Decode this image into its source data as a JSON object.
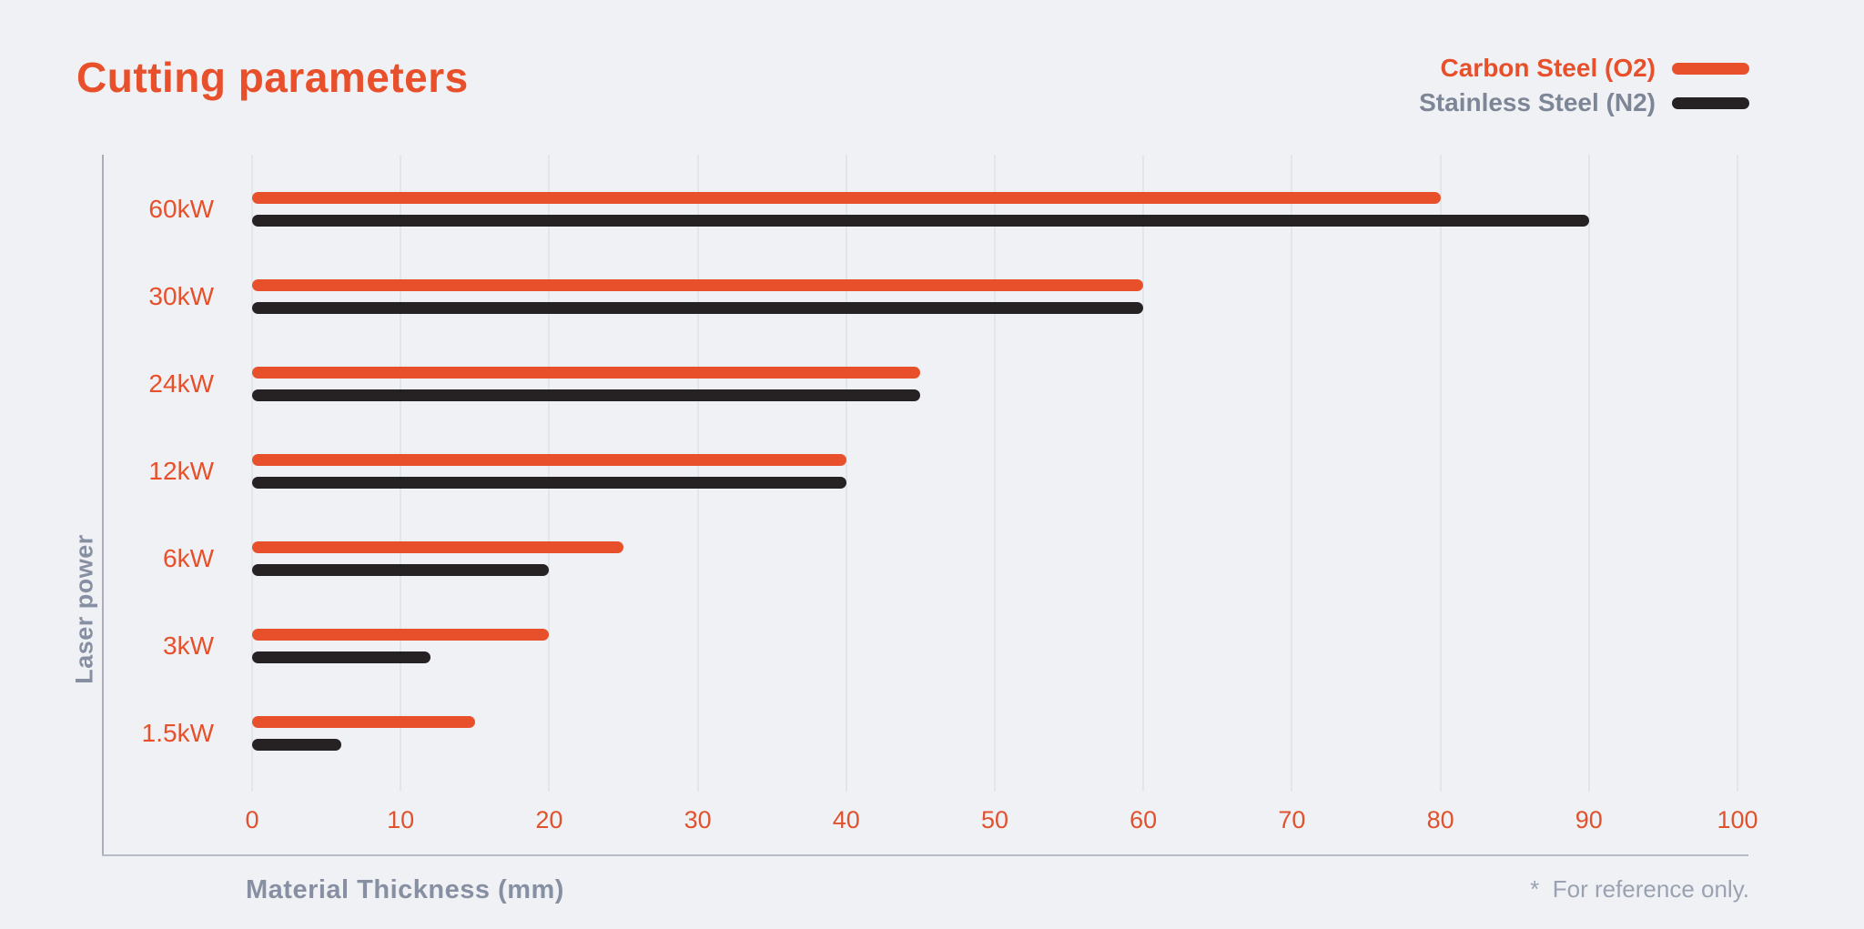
{
  "chart_data": {
    "type": "bar",
    "orientation": "horizontal",
    "title": "Cutting parameters",
    "categories": [
      "60kW",
      "30kW",
      "24kW",
      "12kW",
      "6kW",
      "3kW",
      "1.5kW"
    ],
    "series": [
      {
        "name": "Carbon Steel (O2)",
        "color": "#E8502B",
        "values": [
          80,
          60,
          45,
          40,
          25,
          20,
          15
        ]
      },
      {
        "name": "Stainless Steel (N2)",
        "color": "#262223",
        "values": [
          90,
          60,
          45,
          40,
          20,
          12,
          6
        ]
      }
    ],
    "xlabel": "Material Thickness (mm)",
    "ylabel": "Laser power",
    "xlim": [
      0,
      100
    ],
    "xticks": [
      0,
      10,
      20,
      30,
      40,
      50,
      60,
      70,
      80,
      90,
      100
    ],
    "grid": true,
    "legend_position": "top-right"
  },
  "footnote": "*  For reference only.",
  "colors": {
    "background": "#F0F1F5",
    "title": "#E8502B",
    "tick_label": "#E0512E",
    "category_label": "#E8502B",
    "gridline": "#E2E5EA",
    "axis_line": "#A9AEB9",
    "axis_text": "#8790A2",
    "footnote_text": "#9AA2B2",
    "legend_secondary_text": "#7D8697"
  }
}
